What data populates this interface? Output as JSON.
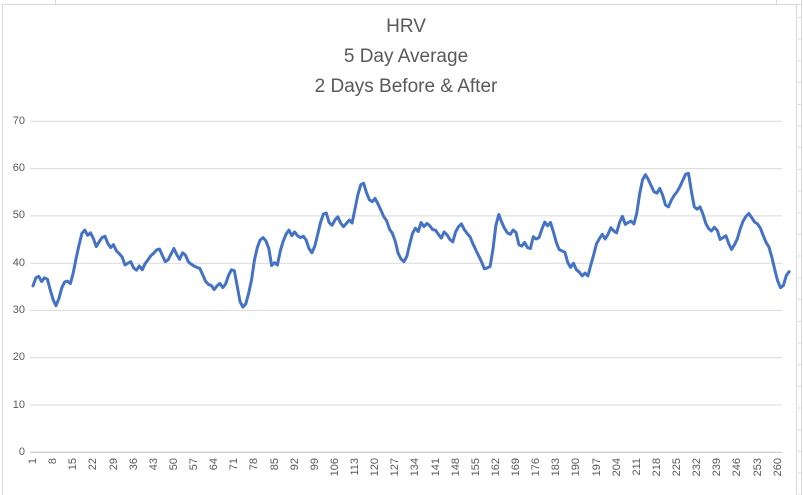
{
  "chart_data": {
    "type": "line",
    "title": "HRV",
    "subtitle_lines": [
      "5 Day Average",
      "2 Days Before & After"
    ],
    "ylabel": "",
    "xlabel": "",
    "ylim": [
      0,
      70
    ],
    "y_ticks": [
      0,
      10,
      20,
      30,
      40,
      50,
      60,
      70
    ],
    "x_range": [
      1,
      264
    ],
    "x_tick_labels": [
      1,
      8,
      15,
      22,
      29,
      36,
      43,
      50,
      57,
      64,
      71,
      78,
      85,
      92,
      99,
      106,
      113,
      120,
      127,
      134,
      141,
      148,
      155,
      162,
      169,
      176,
      183,
      190,
      197,
      204,
      211,
      218,
      225,
      232,
      239,
      246,
      253,
      260
    ],
    "grid": "horizontal",
    "legend": "none",
    "series_name": "HRV 5 Day Average",
    "values": [
      35.2,
      36.9,
      37.2,
      36.1,
      36.9,
      36.6,
      34.3,
      32.3,
      31.0,
      32.5,
      34.8,
      36.0,
      36.2,
      35.7,
      38.0,
      41.0,
      43.8,
      46.3,
      47.0,
      45.9,
      46.4,
      45.2,
      43.5,
      44.5,
      45.4,
      45.7,
      44.2,
      43.3,
      43.9,
      42.6,
      42.0,
      41.3,
      39.6,
      40.0,
      40.3,
      39.0,
      38.5,
      39.4,
      38.6,
      39.9,
      40.7,
      41.6,
      42.1,
      42.8,
      43.0,
      41.6,
      40.3,
      40.7,
      41.9,
      43.1,
      41.8,
      40.8,
      42.2,
      41.7,
      40.3,
      39.8,
      39.4,
      39.1,
      38.9,
      37.6,
      36.2,
      35.5,
      35.3,
      34.4,
      35.2,
      35.7,
      34.8,
      35.6,
      37.4,
      38.6,
      38.4,
      35.3,
      31.9,
      30.7,
      31.4,
      33.6,
      36.4,
      40.6,
      43.3,
      44.9,
      45.4,
      44.7,
      43.1,
      39.5,
      40.1,
      39.6,
      42.6,
      44.6,
      46.1,
      47.0,
      45.8,
      46.6,
      45.8,
      45.4,
      45.7,
      44.9,
      43.1,
      42.2,
      43.6,
      46.0,
      48.6,
      50.4,
      50.6,
      48.6,
      48.0,
      49.1,
      49.8,
      48.5,
      47.7,
      48.4,
      49.1,
      48.5,
      51.5,
      54.5,
      56.6,
      56.9,
      54.9,
      53.4,
      53.0,
      53.7,
      52.5,
      51.2,
      49.8,
      49.0,
      47.2,
      46.3,
      44.6,
      42.1,
      40.9,
      40.3,
      41.4,
      43.9,
      46.3,
      47.4,
      46.7,
      48.6,
      47.7,
      48.4,
      47.9,
      47.1,
      47.0,
      46.1,
      45.3,
      46.6,
      46.0,
      45.0,
      44.5,
      46.6,
      47.7,
      48.3,
      47.1,
      46.3,
      45.6,
      44.1,
      42.8,
      41.6,
      40.3,
      38.8,
      39.0,
      39.3,
      43.0,
      48.0,
      50.3,
      48.7,
      47.4,
      46.4,
      46.1,
      47.0,
      46.5,
      43.9,
      43.6,
      44.4,
      43.3,
      43.1,
      45.6,
      45.1,
      45.4,
      47.2,
      48.7,
      47.9,
      48.6,
      46.6,
      44.4,
      42.9,
      42.6,
      42.3,
      40.1,
      39.1,
      40.0,
      38.6,
      38.1,
      37.3,
      37.9,
      37.3,
      39.6,
      41.7,
      44.1,
      45.2,
      46.1,
      45.1,
      46.1,
      47.5,
      46.8,
      46.4,
      48.6,
      49.9,
      48.2,
      48.6,
      48.9,
      48.3,
      50.6,
      54.6,
      57.6,
      58.7,
      57.7,
      56.4,
      55.1,
      54.8,
      55.8,
      54.4,
      52.3,
      51.9,
      53.3,
      54.3,
      55.1,
      56.2,
      57.5,
      58.8,
      59.0,
      55.2,
      51.9,
      51.4,
      51.9,
      50.4,
      48.4,
      47.3,
      46.8,
      47.6,
      46.9,
      45.0,
      45.4,
      45.8,
      44.1,
      42.9,
      43.9,
      45.2,
      47.3,
      48.9,
      49.9,
      50.5,
      49.6,
      48.7,
      48.3,
      47.4,
      45.8,
      44.4,
      43.4,
      41.2,
      38.6,
      36.3,
      34.8,
      35.3,
      37.4,
      38.2
    ],
    "colors": {
      "line": "#4472C4",
      "gridline": "#d9d9d9",
      "axis": "#bfbfbf",
      "text": "#595959",
      "chart_border": "#d9d9d9"
    }
  }
}
